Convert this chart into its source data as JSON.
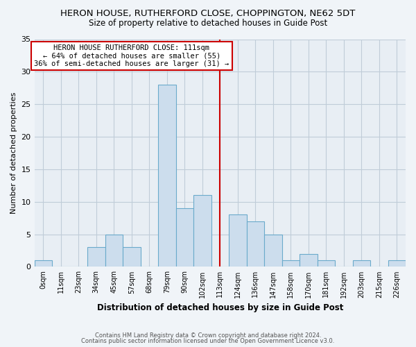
{
  "title": "HERON HOUSE, RUTHERFORD CLOSE, CHOPPINGTON, NE62 5DT",
  "subtitle": "Size of property relative to detached houses in Guide Post",
  "xlabel": "Distribution of detached houses by size in Guide Post",
  "ylabel": "Number of detached properties",
  "bin_labels": [
    "0sqm",
    "11sqm",
    "23sqm",
    "34sqm",
    "45sqm",
    "57sqm",
    "68sqm",
    "79sqm",
    "90sqm",
    "102sqm",
    "113sqm",
    "124sqm",
    "136sqm",
    "147sqm",
    "158sqm",
    "170sqm",
    "181sqm",
    "192sqm",
    "203sqm",
    "215sqm",
    "226sqm"
  ],
  "bar_heights": [
    1,
    0,
    0,
    3,
    5,
    3,
    0,
    28,
    9,
    11,
    0,
    8,
    7,
    5,
    1,
    2,
    1,
    0,
    1,
    0,
    1
  ],
  "bar_color": "#ccdded",
  "bar_edge_color": "#6aaacb",
  "vline_x": 10.0,
  "vline_color": "#cc0000",
  "annotation_line1": "HERON HOUSE RUTHERFORD CLOSE: 111sqm",
  "annotation_line2": "← 64% of detached houses are smaller (55)",
  "annotation_line3": "36% of semi-detached houses are larger (31) →",
  "annotation_box_color": "#ffffff",
  "annotation_box_edge": "#cc0000",
  "ylim": [
    0,
    35
  ],
  "yticks": [
    0,
    5,
    10,
    15,
    20,
    25,
    30,
    35
  ],
  "footer1": "Contains HM Land Registry data © Crown copyright and database right 2024.",
  "footer2": "Contains public sector information licensed under the Open Government Licence v3.0.",
  "bg_color": "#f0f4f8",
  "plot_bg_color": "#e8eef4",
  "grid_color": "#c0ccd8"
}
